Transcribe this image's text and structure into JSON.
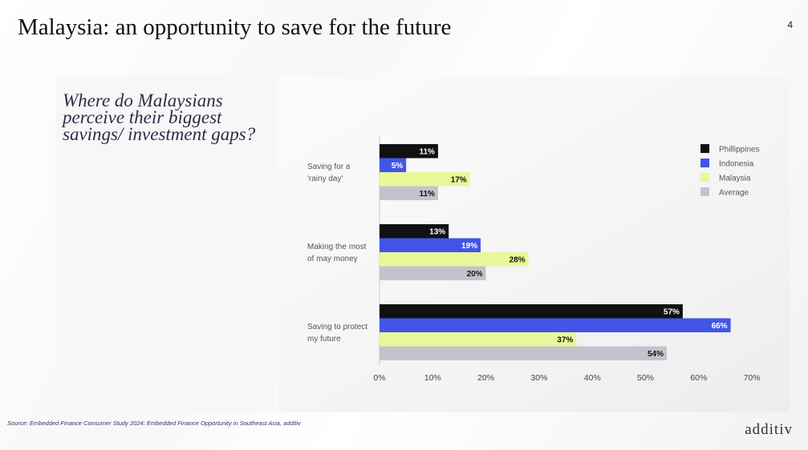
{
  "page": {
    "title": "Malaysia: an opportunity to save for the future",
    "page_number": "4",
    "question": "Where do Malaysians perceive their biggest savings/ investment gaps?",
    "source": "Source: Embedded Finance Consumer Study 2024: Embedded Finance Opportunity in Southeast Asia, additiv",
    "logo": "additiv"
  },
  "chart_data": {
    "type": "bar",
    "orientation": "horizontal",
    "categories": [
      [
        "Saving for a",
        "'rainy day'"
      ],
      [
        "Making the most",
        "of may money"
      ],
      [
        "Saving to protect",
        "my future"
      ]
    ],
    "series": [
      {
        "name": "Phillippines",
        "color": "#111111",
        "values": [
          11,
          13,
          57
        ]
      },
      {
        "name": "Indonesia",
        "color": "#4255e8",
        "values": [
          5,
          19,
          66
        ]
      },
      {
        "name": "Malaysia",
        "color": "#e9f79a",
        "values": [
          17,
          28,
          37
        ]
      },
      {
        "name": "Average",
        "color": "#c2c4cc",
        "values": [
          11,
          20,
          54
        ]
      }
    ],
    "xlim": [
      0,
      70
    ],
    "xticks": [
      "0%",
      "10%",
      "20%",
      "30%",
      "40%",
      "50%",
      "60%",
      "70%"
    ],
    "value_suffix": "%",
    "legend_position": "top-right",
    "grid": false
  }
}
